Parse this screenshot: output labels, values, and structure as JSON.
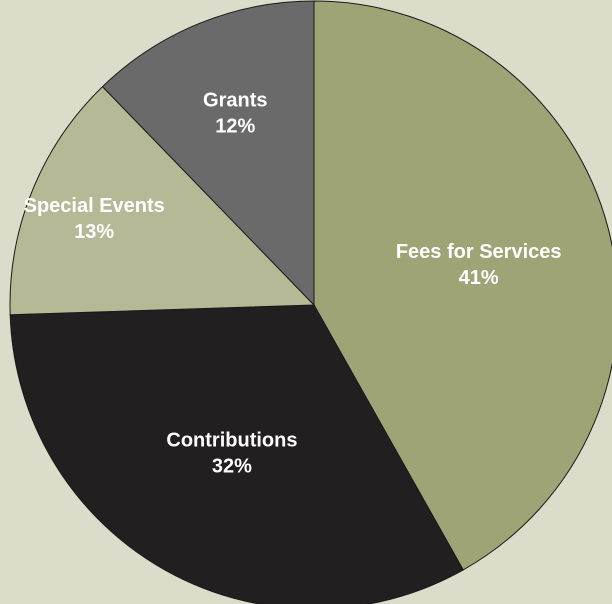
{
  "chart_data": {
    "type": "pie",
    "slices": [
      {
        "label": "Fees for Services",
        "value": 41,
        "value_label": "41%",
        "color": "#9fa477"
      },
      {
        "label": "Contributions",
        "value": 32,
        "value_label": "32%",
        "color": "#231f20"
      },
      {
        "label": "Special Events",
        "value": 13,
        "value_label": "13%",
        "color": "#b6b996"
      },
      {
        "label": "Grants",
        "value": 12,
        "value_label": "12%",
        "color": "#6a6a6a"
      }
    ],
    "start_angle_deg": 0,
    "direction": "clockwise",
    "legend": "none",
    "background": "#dcdcca"
  }
}
